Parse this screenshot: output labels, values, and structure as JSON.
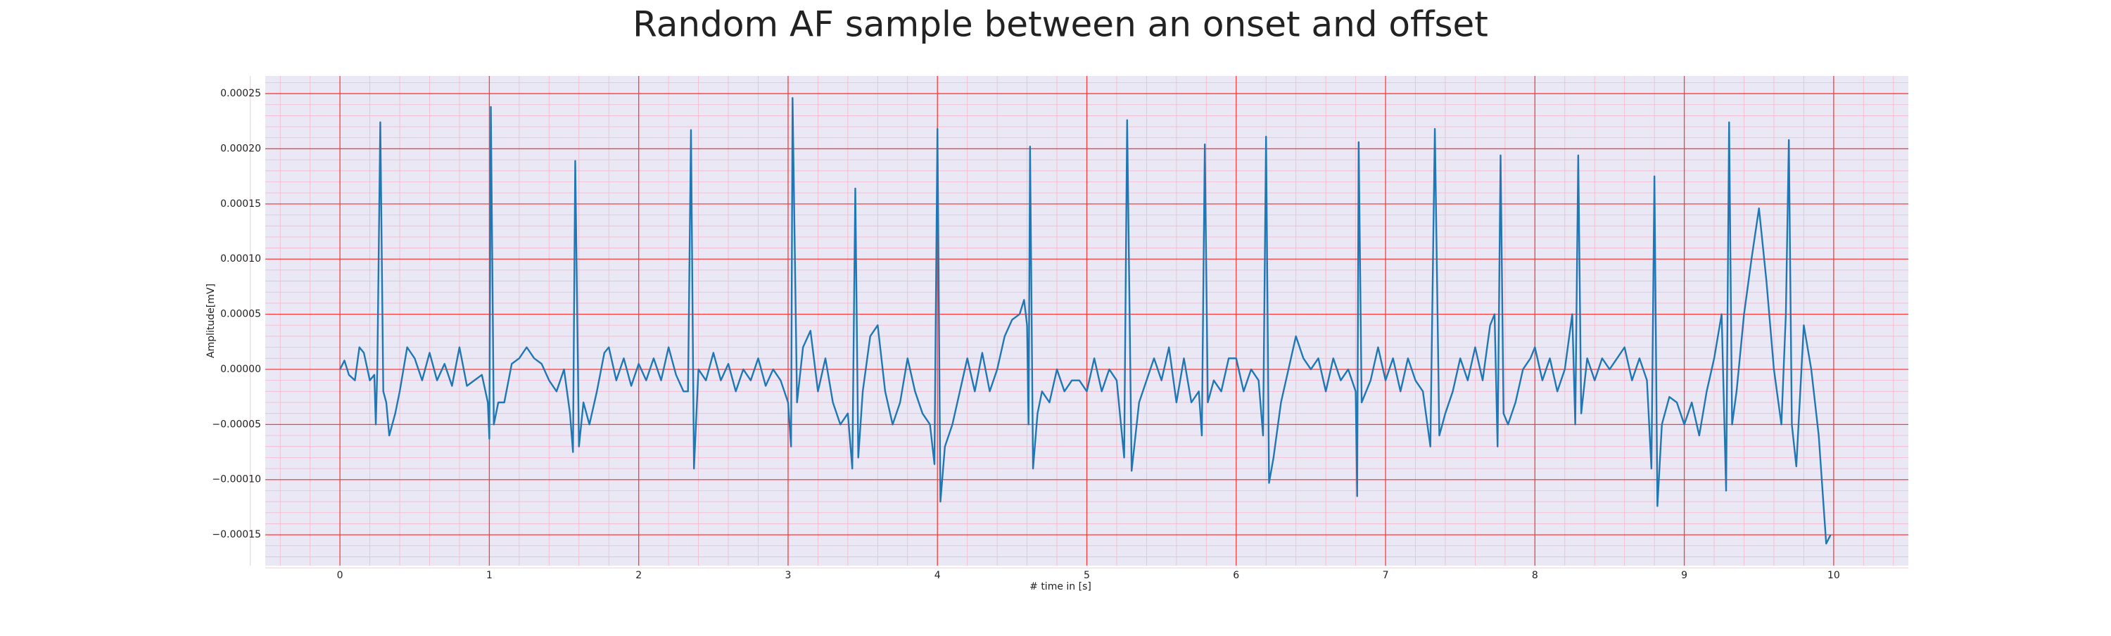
{
  "chart_data": {
    "type": "line",
    "title": "Random AF sample between an onset and offset",
    "x_label": "# time in [s]",
    "y_label": "Amplitude[mV]",
    "xlim": [
      -0.5,
      10.5
    ],
    "ylim": [
      -0.000178,
      0.000266
    ],
    "xticks": [
      0,
      1,
      2,
      3,
      4,
      5,
      6,
      7,
      8,
      9,
      10
    ],
    "yticks": [
      {
        "value": -0.00015,
        "label": "−0.00015"
      },
      {
        "value": -0.0001,
        "label": "−0.00010"
      },
      {
        "value": -5e-05,
        "label": "−0.00005"
      },
      {
        "value": 0,
        "label": "0.00000"
      },
      {
        "value": 5e-05,
        "label": "0.00005"
      },
      {
        "value": 0.0001,
        "label": "0.00010"
      },
      {
        "value": 0.00015,
        "label": "0.00015"
      },
      {
        "value": 0.0002,
        "label": "0.00020"
      },
      {
        "value": 0.00025,
        "label": "0.00025"
      }
    ],
    "grid": true,
    "minor_grid": true,
    "grid_color": "#ff3b3b",
    "minor_grid_color": "#f4b8cc",
    "background": "#eae8f4",
    "series": [
      {
        "color": "#1f77b4",
        "x": [
          0,
          0.03,
          0.06,
          0.1,
          0.13,
          0.16,
          0.2,
          0.23,
          0.24,
          0.25,
          0.27,
          0.29,
          0.31,
          0.33,
          0.37,
          0.4,
          0.45,
          0.5,
          0.55,
          0.6,
          0.65,
          0.7,
          0.75,
          0.8,
          0.85,
          0.9,
          0.95,
          0.99,
          1.0,
          1.01,
          1.03,
          1.06,
          1.1,
          1.15,
          1.2,
          1.25,
          1.3,
          1.35,
          1.4,
          1.45,
          1.5,
          1.54,
          1.56,
          1.575,
          1.6,
          1.63,
          1.67,
          1.72,
          1.77,
          1.8,
          1.85,
          1.9,
          1.95,
          2.0,
          2.05,
          2.1,
          2.15,
          2.2,
          2.25,
          2.3,
          2.33,
          2.35,
          2.37,
          2.4,
          2.45,
          2.5,
          2.55,
          2.6,
          2.65,
          2.7,
          2.75,
          2.8,
          2.85,
          2.9,
          2.95,
          3.0,
          3.02,
          3.03,
          3.06,
          3.1,
          3.15,
          3.2,
          3.25,
          3.3,
          3.35,
          3.4,
          3.43,
          3.45,
          3.47,
          3.5,
          3.55,
          3.6,
          3.65,
          3.7,
          3.75,
          3.8,
          3.85,
          3.9,
          3.95,
          3.98,
          4.0,
          4.02,
          4.05,
          4.1,
          4.15,
          4.2,
          4.25,
          4.3,
          4.35,
          4.4,
          4.45,
          4.5,
          4.55,
          4.58,
          4.6,
          4.61,
          4.62,
          4.64,
          4.67,
          4.7,
          4.75,
          4.8,
          4.85,
          4.9,
          4.95,
          5.0,
          5.05,
          5.1,
          5.15,
          5.2,
          5.25,
          5.27,
          5.3,
          5.35,
          5.4,
          5.45,
          5.5,
          5.55,
          5.6,
          5.65,
          5.7,
          5.75,
          5.77,
          5.79,
          5.81,
          5.85,
          5.9,
          5.95,
          6.0,
          6.05,
          6.1,
          6.15,
          6.18,
          6.2,
          6.22,
          6.25,
          6.3,
          6.35,
          6.4,
          6.45,
          6.5,
          6.55,
          6.6,
          6.65,
          6.7,
          6.75,
          6.8,
          6.81,
          6.82,
          6.84,
          6.9,
          6.95,
          7.0,
          7.05,
          7.1,
          7.15,
          7.2,
          7.25,
          7.3,
          7.33,
          7.36,
          7.4,
          7.45,
          7.5,
          7.55,
          7.6,
          7.65,
          7.7,
          7.73,
          7.75,
          7.77,
          7.79,
          7.82,
          7.87,
          7.92,
          7.97,
          8.0,
          8.05,
          8.1,
          8.15,
          8.2,
          8.25,
          8.27,
          8.29,
          8.31,
          8.35,
          8.4,
          8.45,
          8.5,
          8.55,
          8.6,
          8.65,
          8.7,
          8.75,
          8.78,
          8.8,
          8.82,
          8.85,
          8.9,
          8.95,
          9.0,
          9.05,
          9.1,
          9.15,
          9.2,
          9.25,
          9.28,
          9.3,
          9.32,
          9.35,
          9.4,
          9.45,
          9.5,
          9.55,
          9.6,
          9.65,
          9.68,
          9.7,
          9.72,
          9.75,
          9.8,
          9.85,
          9.9,
          9.95,
          9.98
        ],
        "values": [
          0.0,
          8e-06,
          -5e-06,
          -1e-05,
          2e-05,
          1.5e-05,
          -1e-05,
          -5e-06,
          -5e-05,
          0.0,
          0.000224,
          -2e-05,
          -3e-05,
          -6e-05,
          -4e-05,
          -2e-05,
          2e-05,
          1e-05,
          -1e-05,
          1.5e-05,
          -1e-05,
          5e-06,
          -1.5e-05,
          2e-05,
          -1.5e-05,
          -1e-05,
          -5e-06,
          -3e-05,
          -6.3e-05,
          0.000238,
          -5e-05,
          -3e-05,
          -3e-05,
          5e-06,
          1e-05,
          2e-05,
          1e-05,
          5e-06,
          -1e-05,
          -2e-05,
          0.0,
          -4e-05,
          -7.5e-05,
          0.000189,
          -7e-05,
          -3e-05,
          -5e-05,
          -2e-05,
          1.5e-05,
          2e-05,
          -1e-05,
          1e-05,
          -1.5e-05,
          5e-06,
          -1e-05,
          1e-05,
          -1e-05,
          2e-05,
          -5e-06,
          -2e-05,
          -2e-05,
          0.000217,
          -9e-05,
          0.0,
          -1e-05,
          1.5e-05,
          -1e-05,
          5e-06,
          -2e-05,
          0.0,
          -1e-05,
          1e-05,
          -1.5e-05,
          0.0,
          -1e-05,
          -3e-05,
          -7e-05,
          0.000246,
          -3e-05,
          2e-05,
          3.5e-05,
          -2e-05,
          1e-05,
          -3e-05,
          -5e-05,
          -4e-05,
          -9e-05,
          0.000164,
          -8e-05,
          -2e-05,
          3e-05,
          4e-05,
          -2e-05,
          -5e-05,
          -3e-05,
          1e-05,
          -2e-05,
          -4e-05,
          -5e-05,
          -8.6e-05,
          0.000218,
          -0.00012,
          -7e-05,
          -5e-05,
          -2e-05,
          1e-05,
          -2e-05,
          1.5e-05,
          -2e-05,
          0.0,
          3e-05,
          4.5e-05,
          5e-05,
          6.3e-05,
          4e-05,
          -5e-05,
          0.000202,
          -9e-05,
          -4e-05,
          -2e-05,
          -3e-05,
          0.0,
          -2e-05,
          -1e-05,
          -1e-05,
          -2e-05,
          1e-05,
          -2e-05,
          0.0,
          -1e-05,
          -8e-05,
          0.000226,
          -9.2e-05,
          -3e-05,
          -1e-05,
          1e-05,
          -1e-05,
          2e-05,
          -3e-05,
          1e-05,
          -3e-05,
          -2e-05,
          -6e-05,
          0.000204,
          -3e-05,
          -1e-05,
          -2e-05,
          1e-05,
          1e-05,
          -2e-05,
          0.0,
          -1e-05,
          -6e-05,
          0.000211,
          -0.000103,
          -8e-05,
          -3e-05,
          0.0,
          3e-05,
          1e-05,
          0.0,
          1e-05,
          -2e-05,
          1e-05,
          -1e-05,
          0.0,
          -2e-05,
          -0.000115,
          0.000206,
          -3e-05,
          -1e-05,
          2e-05,
          -1e-05,
          1e-05,
          -2e-05,
          1e-05,
          -1e-05,
          -2e-05,
          -7e-05,
          0.000218,
          -6e-05,
          -4e-05,
          -2e-05,
          1e-05,
          -1e-05,
          2e-05,
          -1e-05,
          4e-05,
          5e-05,
          -7e-05,
          0.000194,
          -4e-05,
          -5e-05,
          -3e-05,
          0.0,
          1e-05,
          2e-05,
          -1e-05,
          1e-05,
          -2e-05,
          0.0,
          5e-05,
          -5e-05,
          0.000194,
          -4e-05,
          1e-05,
          -1e-05,
          1e-05,
          0.0,
          1e-05,
          2e-05,
          -1e-05,
          1e-05,
          -1e-05,
          -9e-05,
          0.000175,
          -0.000124,
          -5e-05,
          -2.5e-05,
          -3e-05,
          -5e-05,
          -3e-05,
          -6e-05,
          -2e-05,
          1e-05,
          5e-05,
          -0.00011,
          0.000224,
          -5e-05,
          -2e-05,
          5e-05,
          0.0001,
          0.000146,
          8e-05,
          0.0,
          -5e-05,
          5e-05,
          0.000208,
          -5e-05,
          -8.8e-05,
          4e-05,
          0.0,
          -6e-05,
          -0.000158,
          -0.00015
        ]
      }
    ]
  }
}
